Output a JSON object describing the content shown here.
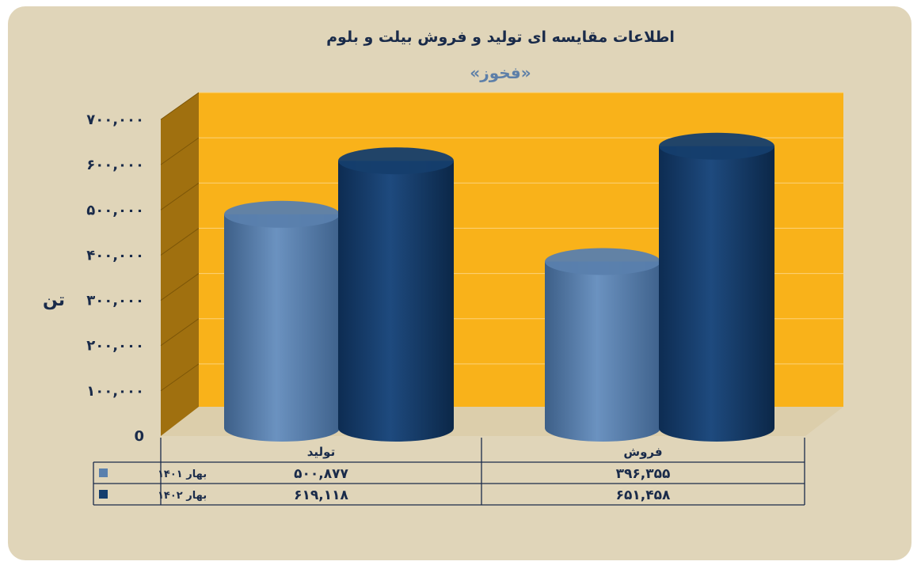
{
  "colors": {
    "card_bg": "#e0d5b9",
    "plot_back": "#f9b21a",
    "plot_side": "#a0700f",
    "plot_side_dark": "#7d5608",
    "floor": "#d9c9a0",
    "series_1401": "#5a80ad",
    "series_1402": "#153e6d",
    "title": "#1a2b4a",
    "subtitle": "#5d7fa8",
    "axis_text": "#1a2b4a",
    "table_line": "#1a2b4a"
  },
  "chart_data": {
    "type": "bar",
    "title": "اطلاعات مقایسه ای تولید و فروش بیلت و بلوم",
    "subtitle": "«فخوز»",
    "ylabel": "تن",
    "xlabel": "",
    "ylim": [
      0,
      700000
    ],
    "yticks": [
      0,
      100000,
      200000,
      300000,
      400000,
      500000,
      600000,
      700000
    ],
    "ytick_labels": [
      "0",
      "۱۰۰,۰۰۰",
      "۲۰۰,۰۰۰",
      "۳۰۰,۰۰۰",
      "۴۰۰,۰۰۰",
      "۵۰۰,۰۰۰",
      "۶۰۰,۰۰۰",
      "۷۰۰,۰۰۰"
    ],
    "grid": true,
    "categories": [
      "تولید",
      "فروش"
    ],
    "series": [
      {
        "name": "بهار ۱۴۰۱",
        "values": [
          500877,
          396355
        ],
        "labels": [
          "۵۰۰,۸۷۷",
          "۳۹۶,۳۵۵"
        ]
      },
      {
        "name": "بهار ۱۴۰۲",
        "values": [
          619118,
          651458
        ],
        "labels": [
          "۶۱۹,۱۱۸",
          "۶۵۱,۴۵۸"
        ]
      }
    ],
    "legend": "data-table-below"
  }
}
